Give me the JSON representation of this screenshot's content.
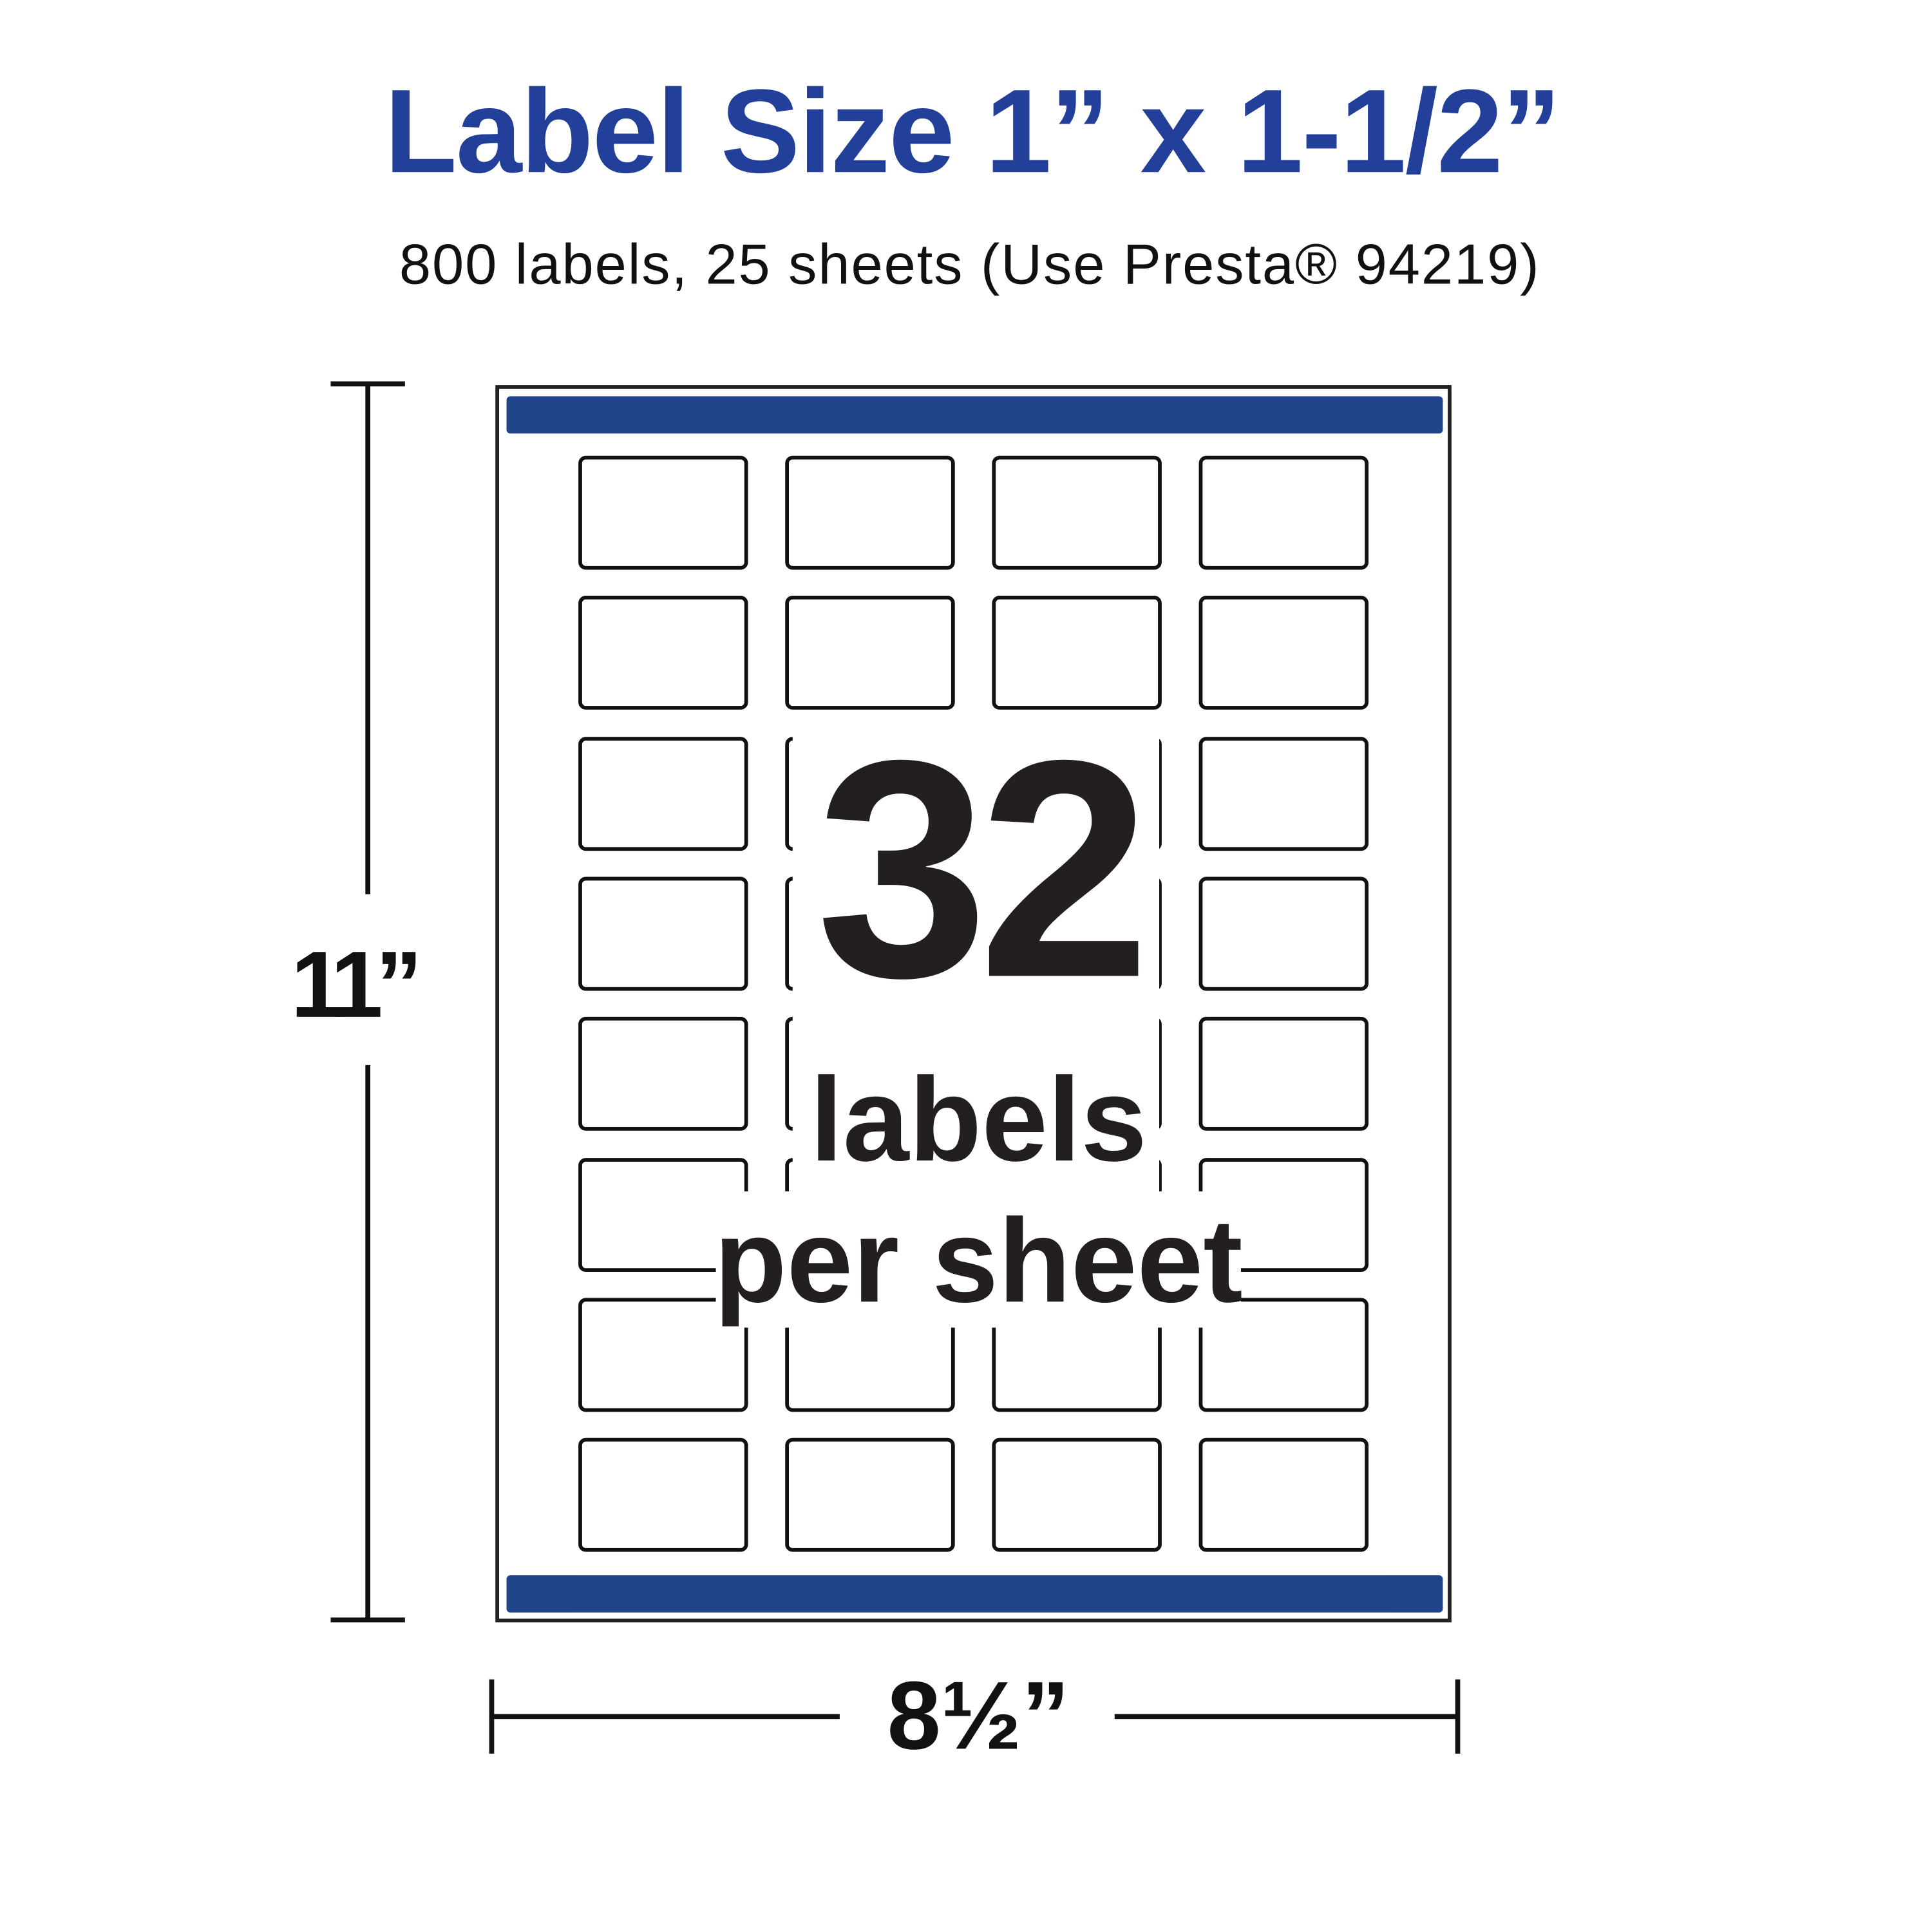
{
  "header": {
    "title": "Label Size 1” x 1-1/2”",
    "subtitle": "800 labels, 25 sheets (Use Presta® 94219)"
  },
  "sheet": {
    "columns": 4,
    "rows": 8,
    "count_number": "32",
    "count_line1": "labels",
    "count_line2": "per sheet"
  },
  "dimensions": {
    "height": "11”",
    "width": "8½”"
  },
  "colors": {
    "title": "#22409a",
    "bar": "#1f4489",
    "ink": "#231f20"
  }
}
